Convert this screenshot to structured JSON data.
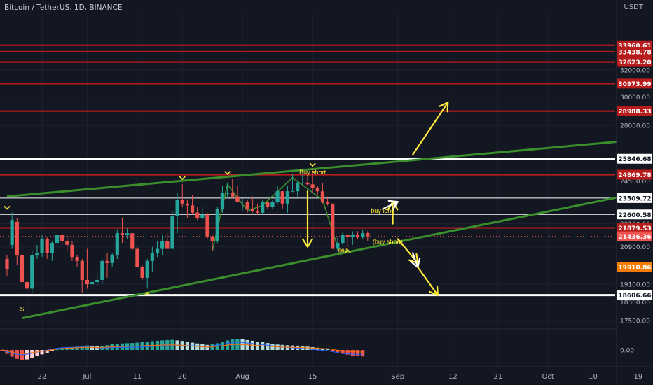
{
  "header": {
    "title": "Bitcoin / TetherUS, 1D, BINANCE",
    "currency": "USDT"
  },
  "colors": {
    "background": "#131722",
    "bull": "#26a69a",
    "bear": "#ef5350",
    "resistance": "#b71c1c",
    "support_white": "#ffffff",
    "trendline": "#3a8f2c",
    "orange_level": "#f57c00",
    "annotation": "#ffeb3b"
  },
  "chart_data": {
    "type": "candlestick",
    "y_scale": "log",
    "price_range": [
      17150,
      36500
    ],
    "x_axis_ticks": [
      "22",
      "Jul",
      "11",
      "20",
      "Aug",
      "15",
      "Sep",
      "12",
      "21",
      "Oct",
      "10",
      "19"
    ],
    "y_axis_ticks": [
      "32000.00",
      "30000.00",
      "28000.00",
      "24500.00",
      "22600.58",
      "22100.00",
      "20900.00",
      "19100.00",
      "18300.00",
      "17500.00"
    ],
    "macd_ticks": [
      "0.00"
    ],
    "candles": [
      {
        "date": "2022-06-15",
        "open": 20300,
        "high": 20500,
        "low": 19500,
        "close": 19800
      },
      {
        "date": "2022-06-16",
        "open": 21000,
        "high": 22700,
        "low": 20800,
        "close": 22300
      },
      {
        "date": "2022-06-17",
        "open": 22200,
        "high": 22400,
        "low": 20000,
        "close": 20500
      },
      {
        "date": "2022-06-18",
        "open": 20500,
        "high": 21200,
        "low": 18900,
        "close": 19200
      },
      {
        "date": "2022-06-19",
        "open": 19200,
        "high": 19600,
        "low": 17700,
        "close": 18900
      },
      {
        "date": "2022-06-20",
        "open": 18900,
        "high": 20700,
        "low": 18600,
        "close": 20500
      },
      {
        "date": "2022-06-21",
        "open": 20500,
        "high": 21000,
        "low": 20300,
        "close": 20600
      },
      {
        "date": "2022-06-22",
        "open": 20600,
        "high": 21500,
        "low": 20400,
        "close": 21300
      },
      {
        "date": "2022-06-23",
        "open": 21300,
        "high": 21400,
        "low": 20300,
        "close": 20600
      },
      {
        "date": "2022-06-24",
        "open": 20600,
        "high": 21200,
        "low": 20200,
        "close": 21100
      },
      {
        "date": "2022-06-25",
        "open": 21100,
        "high": 21800,
        "low": 20900,
        "close": 21500
      },
      {
        "date": "2022-06-26",
        "open": 21500,
        "high": 21600,
        "low": 21000,
        "close": 21200
      },
      {
        "date": "2022-06-27",
        "open": 21200,
        "high": 21500,
        "low": 20700,
        "close": 21000
      },
      {
        "date": "2022-06-28",
        "open": 21000,
        "high": 21200,
        "low": 20200,
        "close": 20400
      },
      {
        "date": "2022-06-29",
        "open": 20400,
        "high": 20500,
        "low": 19900,
        "close": 20200
      },
      {
        "date": "2022-06-30",
        "open": 20200,
        "high": 20300,
        "low": 18700,
        "close": 19300
      },
      {
        "date": "2022-07-01",
        "open": 19300,
        "high": 20800,
        "low": 18900,
        "close": 19100
      },
      {
        "date": "2022-07-02",
        "open": 19100,
        "high": 19400,
        "low": 18900,
        "close": 19200
      },
      {
        "date": "2022-07-03",
        "open": 19200,
        "high": 19600,
        "low": 19000,
        "close": 19300
      },
      {
        "date": "2022-07-04",
        "open": 19300,
        "high": 20300,
        "low": 19100,
        "close": 20200
      },
      {
        "date": "2022-07-05",
        "open": 20200,
        "high": 20600,
        "low": 19400,
        "close": 20100
      },
      {
        "date": "2022-07-06",
        "open": 20100,
        "high": 20600,
        "low": 19900,
        "close": 20500
      },
      {
        "date": "2022-07-07",
        "open": 20500,
        "high": 21800,
        "low": 20300,
        "close": 21600
      },
      {
        "date": "2022-07-08",
        "open": 21600,
        "high": 22400,
        "low": 21100,
        "close": 21500
      },
      {
        "date": "2022-07-09",
        "open": 21500,
        "high": 21900,
        "low": 21300,
        "close": 21600
      },
      {
        "date": "2022-07-10",
        "open": 21600,
        "high": 21600,
        "low": 20700,
        "close": 20800
      },
      {
        "date": "2022-07-11",
        "open": 20800,
        "high": 20900,
        "low": 19900,
        "close": 19900
      },
      {
        "date": "2022-07-12",
        "open": 19900,
        "high": 20000,
        "low": 19300,
        "close": 19400
      },
      {
        "date": "2022-07-13",
        "open": 19400,
        "high": 20300,
        "low": 18900,
        "close": 20200
      },
      {
        "date": "2022-07-14",
        "open": 20200,
        "high": 20900,
        "low": 19700,
        "close": 20600
      },
      {
        "date": "2022-07-15",
        "open": 20600,
        "high": 21200,
        "low": 20400,
        "close": 20800
      },
      {
        "date": "2022-07-16",
        "open": 20800,
        "high": 21500,
        "low": 20500,
        "close": 21200
      },
      {
        "date": "2022-07-17",
        "open": 21200,
        "high": 21600,
        "low": 20800,
        "close": 20800
      },
      {
        "date": "2022-07-18",
        "open": 20800,
        "high": 22800,
        "low": 20800,
        "close": 22500
      },
      {
        "date": "2022-07-19",
        "open": 22500,
        "high": 23800,
        "low": 21600,
        "close": 23400
      },
      {
        "date": "2022-07-20",
        "open": 23400,
        "high": 24300,
        "low": 23000,
        "close": 23200
      },
      {
        "date": "2022-07-21",
        "open": 23200,
        "high": 23400,
        "low": 22400,
        "close": 23100
      },
      {
        "date": "2022-07-22",
        "open": 23100,
        "high": 23700,
        "low": 22600,
        "close": 22700
      },
      {
        "date": "2022-07-23",
        "open": 22700,
        "high": 23000,
        "low": 22300,
        "close": 22400
      },
      {
        "date": "2022-07-24",
        "open": 22400,
        "high": 23000,
        "low": 22300,
        "close": 22600
      },
      {
        "date": "2022-07-25",
        "open": 22600,
        "high": 22700,
        "low": 21300,
        "close": 21400
      },
      {
        "date": "2022-07-26",
        "open": 21400,
        "high": 21500,
        "low": 20700,
        "close": 21200
      },
      {
        "date": "2022-07-27",
        "open": 21200,
        "high": 23000,
        "low": 21100,
        "close": 22900
      },
      {
        "date": "2022-07-28",
        "open": 22900,
        "high": 24200,
        "low": 22700,
        "close": 23800
      },
      {
        "date": "2022-07-29",
        "open": 23800,
        "high": 24400,
        "low": 23500,
        "close": 23800
      },
      {
        "date": "2022-07-30",
        "open": 23800,
        "high": 24600,
        "low": 23500,
        "close": 23600
      },
      {
        "date": "2022-07-31",
        "open": 23600,
        "high": 24200,
        "low": 23300,
        "close": 23300
      },
      {
        "date": "2022-08-01",
        "open": 23300,
        "high": 23500,
        "low": 22800,
        "close": 23300
      },
      {
        "date": "2022-08-02",
        "open": 23300,
        "high": 23400,
        "low": 22700,
        "close": 22900
      },
      {
        "date": "2022-08-03",
        "open": 22900,
        "high": 23600,
        "low": 22700,
        "close": 22800
      },
      {
        "date": "2022-08-04",
        "open": 22800,
        "high": 23200,
        "low": 22600,
        "close": 22700
      },
      {
        "date": "2022-08-05",
        "open": 22700,
        "high": 23400,
        "low": 22600,
        "close": 23300
      },
      {
        "date": "2022-08-06",
        "open": 23300,
        "high": 23300,
        "low": 22900,
        "close": 23000
      },
      {
        "date": "2022-08-07",
        "open": 23000,
        "high": 23400,
        "low": 22900,
        "close": 23300
      },
      {
        "date": "2022-08-08",
        "open": 23300,
        "high": 24200,
        "low": 23200,
        "close": 23900
      },
      {
        "date": "2022-08-09",
        "open": 23900,
        "high": 23900,
        "low": 22900,
        "close": 23200
      },
      {
        "date": "2022-08-10",
        "open": 23200,
        "high": 24200,
        "low": 22700,
        "close": 23900
      },
      {
        "date": "2022-08-11",
        "open": 23900,
        "high": 24900,
        "low": 23900,
        "close": 23900
      },
      {
        "date": "2022-08-12",
        "open": 23900,
        "high": 24500,
        "low": 23600,
        "close": 24400
      },
      {
        "date": "2022-08-13",
        "open": 24400,
        "high": 24900,
        "low": 24300,
        "close": 24400
      },
      {
        "date": "2022-08-14",
        "open": 24400,
        "high": 25100,
        "low": 24200,
        "close": 24300
      },
      {
        "date": "2022-08-15",
        "open": 24300,
        "high": 25200,
        "low": 23800,
        "close": 24100
      },
      {
        "date": "2022-08-16",
        "open": 24100,
        "high": 24200,
        "low": 23700,
        "close": 23900
      },
      {
        "date": "2022-08-17",
        "open": 23900,
        "high": 24400,
        "low": 23200,
        "close": 23300
      },
      {
        "date": "2022-08-18",
        "open": 23300,
        "high": 23600,
        "low": 23100,
        "close": 23200
      },
      {
        "date": "2022-08-19",
        "open": 23200,
        "high": 23200,
        "low": 20800,
        "close": 20800
      },
      {
        "date": "2022-08-20",
        "open": 20800,
        "high": 21400,
        "low": 20700,
        "close": 21100
      },
      {
        "date": "2022-08-21",
        "open": 21100,
        "high": 21700,
        "low": 21000,
        "close": 21500
      },
      {
        "date": "2022-08-22",
        "open": 21500,
        "high": 21500,
        "low": 20900,
        "close": 21400
      },
      {
        "date": "2022-08-23",
        "open": 21400,
        "high": 21700,
        "low": 21000,
        "close": 21500
      },
      {
        "date": "2022-08-24",
        "open": 21500,
        "high": 21700,
        "low": 21300,
        "close": 21400
      },
      {
        "date": "2022-08-25",
        "open": 21400,
        "high": 21800,
        "low": 21300,
        "close": 21600
      },
      {
        "date": "2022-08-26",
        "open": 21600,
        "high": 21700,
        "low": 21200,
        "close": 21436.36
      }
    ],
    "horizontal_levels": [
      {
        "price": 33960.61,
        "label": "33960.61",
        "color": "#b71c1c",
        "label_bg": "#b71c1c",
        "style": "red"
      },
      {
        "price": 33438.78,
        "label": "33438.78",
        "color": "#b71c1c",
        "label_bg": "#b71c1c",
        "style": "red"
      },
      {
        "price": 32623.2,
        "label": "32623.20",
        "color": "#b71c1c",
        "label_bg": "#b71c1c",
        "style": "red"
      },
      {
        "price": 30973.99,
        "label": "30973.99",
        "color": "#b71c1c",
        "label_bg": "#b71c1c",
        "style": "red"
      },
      {
        "price": 28988.33,
        "label": "28988.33",
        "color": "#b71c1c",
        "label_bg": "#b71c1c",
        "style": "red"
      },
      {
        "price": 25846.68,
        "label": "25846.68",
        "color": "#ffffff",
        "label_bg": "#ffffff",
        "style": "white"
      },
      {
        "price": 24869.78,
        "label": "24869.78",
        "color": "#b71c1c",
        "label_bg": "#b71c1c",
        "style": "red"
      },
      {
        "price": 23509.72,
        "label": "23509.72",
        "color": "#ffffff",
        "label_bg": "#ffffff",
        "style": "white-thin"
      },
      {
        "price": 22600.58,
        "label": "22600.58",
        "color": "#ffffff",
        "label_bg": "#ffffff",
        "style": "white-thin"
      },
      {
        "price": 21879.53,
        "label": "21879.53",
        "color": "#b71c1c",
        "label_bg": "#b71c1c",
        "style": "red"
      },
      {
        "price": 21436.36,
        "label": "21436.36",
        "color": "#ef5350",
        "label_bg": "#ef5350",
        "style": "last-price"
      },
      {
        "price": 19910.86,
        "label": "19910.86",
        "color": "#f57c00",
        "label_bg": "#f57c00",
        "style": "orange"
      },
      {
        "price": 18606.66,
        "label": "18606.66",
        "color": "#ffffff",
        "label_bg": "#ffffff",
        "style": "white"
      }
    ],
    "trendlines": [
      {
        "name": "upper-channel",
        "from": {
          "date": "2022-06-15",
          "price": 23600
        },
        "to": {
          "date": "2022-10-31",
          "price": 27400
        }
      },
      {
        "name": "lower-channel",
        "from": {
          "date": "2022-06-18",
          "price": 17600
        },
        "to": {
          "date": "2022-10-31",
          "price": 24500
        }
      }
    ],
    "pattern_path": [
      {
        "date": "2022-07-26",
        "price": 20700
      },
      {
        "date": "2022-07-29",
        "price": 24300
      },
      {
        "date": "2022-08-02",
        "price": 22800
      },
      {
        "date": "2022-08-05",
        "price": 23100
      },
      {
        "date": "2022-08-11",
        "price": 24700
      },
      {
        "date": "2022-08-17",
        "price": 23400
      },
      {
        "date": "2022-08-20",
        "price": 20900
      }
    ],
    "annotations": [
      {
        "text": "Buy short",
        "date": "2022-08-15",
        "price": 24900
      },
      {
        "text": "sell",
        "date": "2022-08-21",
        "price": 20620
      },
      {
        "text": "buy long",
        "date": "2022-08-29",
        "price": 22680
      },
      {
        "text": "(buy short)",
        "date": "2022-08-30",
        "price": 21050
      },
      {
        "text": "$",
        "date": "2022-06-18",
        "price": 17900
      }
    ],
    "arrows": [
      {
        "color": "#ffeb3b",
        "from": {
          "date": "2022-09-04",
          "price": 26100
        },
        "to": {
          "date": "2022-09-11",
          "price": 29600
        }
      },
      {
        "color": "#ffeb3b",
        "from": {
          "date": "2022-08-14",
          "price": 23900
        },
        "to": {
          "date": "2022-08-14",
          "price": 20900
        }
      },
      {
        "color": "#ffeb3b",
        "from": {
          "date": "2022-08-31",
          "price": 22100
        },
        "to": {
          "date": "2022-08-31",
          "price": 23300
        }
      },
      {
        "color": "#ffffff",
        "from": {
          "date": "2022-08-29",
          "price": 22900
        },
        "to": {
          "date": "2022-09-01",
          "price": 23300
        }
      },
      {
        "color": "#ffeb3b",
        "from": {
          "date": "2022-09-01",
          "price": 21300
        },
        "to": {
          "date": "2022-09-05",
          "price": 20100
        }
      },
      {
        "color": "#ffffff",
        "from": {
          "date": "2022-09-04",
          "price": 20600
        },
        "to": {
          "date": "2022-09-05",
          "price": 19900
        }
      },
      {
        "color": "#ffeb3b",
        "from": {
          "date": "2022-09-05",
          "price": 19900
        },
        "to": {
          "date": "2022-09-09",
          "price": 18600
        }
      }
    ],
    "chevrons": [
      {
        "date": "2022-06-15",
        "price": 22900,
        "dir": "down"
      },
      {
        "date": "2022-07-20",
        "price": 24600,
        "dir": "down"
      },
      {
        "date": "2022-07-29",
        "price": 24900,
        "dir": "down"
      },
      {
        "date": "2022-08-15",
        "price": 25400,
        "dir": "down"
      },
      {
        "date": "2022-07-13",
        "price": 18720,
        "dir": "up"
      },
      {
        "date": "2022-08-22",
        "price": 20750,
        "dir": "up"
      }
    ],
    "macd_histogram": [
      -0.1,
      -0.35,
      -0.6,
      -0.8,
      -0.9,
      -0.85,
      -0.7,
      -0.55,
      -0.4,
      -0.25,
      -0.1,
      0.05,
      0.15,
      0.2,
      0.25,
      0.3,
      0.35,
      0.4,
      0.38,
      0.35,
      0.38,
      0.42,
      0.5,
      0.55,
      0.58,
      0.6,
      0.62,
      0.65,
      0.7,
      0.75,
      0.78,
      0.82,
      0.85,
      0.88,
      0.9,
      0.85,
      0.8,
      0.72,
      0.65,
      0.58,
      0.5,
      0.45,
      0.5,
      0.6,
      0.72,
      0.85,
      0.95,
      1.0,
      0.95,
      0.88,
      0.82,
      0.75,
      0.7,
      0.62,
      0.55,
      0.48,
      0.45,
      0.42,
      0.4,
      0.38,
      0.35,
      0.3,
      0.25,
      0.2,
      0.15,
      0.1,
      -0.05,
      -0.2,
      -0.35,
      -0.42,
      -0.5,
      -0.55,
      -0.58
    ]
  }
}
